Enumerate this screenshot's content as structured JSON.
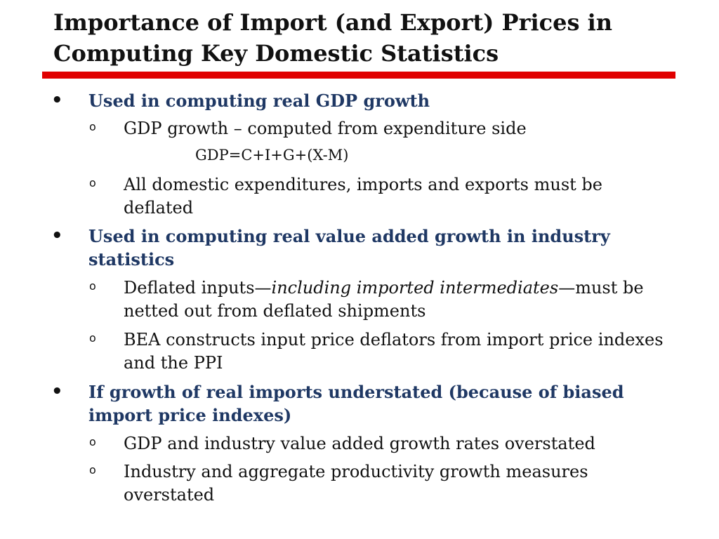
{
  "slide": {
    "title_line1": "Importance of Import (and Export) Prices in",
    "title_line2": "Computing Key Domestic Statistics"
  },
  "colors": {
    "rule": "#e00000",
    "heading_blue": "#1f3864",
    "text": "#111111"
  },
  "icons": {
    "level1_bullet": "filled-round-bullet",
    "level2_bullet": "hollow-circle-bullet"
  },
  "content": {
    "b1": {
      "marker": "•",
      "text": "Used in computing real GDP growth",
      "sub1": {
        "marker": "o",
        "text": "GDP growth – computed from expenditure side"
      },
      "formula": "GDP=C+I+G+(X-M)",
      "sub2": {
        "marker": "o",
        "text": "All domestic expenditures, imports and exports must be deflated"
      }
    },
    "b2": {
      "marker": "•",
      "text": "Used in computing real value added growth in industry statistics",
      "sub1": {
        "marker": "o",
        "pre": "Deflated inputs—",
        "italic": "including imported intermediates",
        "post": "—must be netted out from deflated shipments"
      },
      "sub2": {
        "marker": "o",
        "text": "BEA constructs input price deflators from import price indexes and the PPI"
      }
    },
    "b3": {
      "marker": "•",
      "text": "If growth of real imports understated (because of biased import price indexes)",
      "sub1": {
        "marker": "o",
        "text": "GDP and industry value added growth rates overstated"
      },
      "sub2": {
        "marker": "o",
        "text": "Industry and aggregate productivity growth measures overstated"
      }
    }
  }
}
